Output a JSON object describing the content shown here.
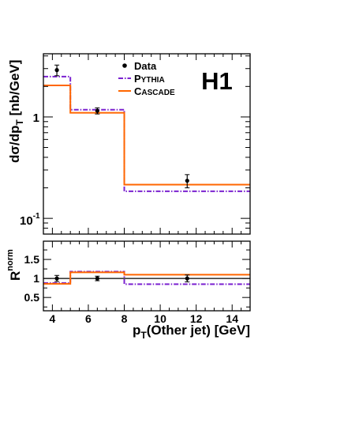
{
  "chart_data": [
    {
      "type": "line",
      "logo": "H1",
      "ylabel": {
        "main": "dσ/dp",
        "sub": "T",
        "unit": " [nb/GeV]"
      },
      "yscale": "log",
      "ylim": [
        0.07,
        4.2
      ],
      "xlim": [
        3.5,
        15
      ],
      "yticks": [
        {
          "value": 1,
          "label": "1"
        },
        {
          "value": 0.1,
          "base": "10",
          "exp": "-1"
        }
      ],
      "legend": {
        "position": "top-center",
        "entries": [
          {
            "key": "data",
            "label": "Data"
          },
          {
            "key": "pythia",
            "label": "PYTHIA"
          },
          {
            "key": "cascade",
            "label": "CASCADE"
          }
        ]
      },
      "bins": [
        3.5,
        5,
        8,
        15
      ],
      "data": {
        "x": [
          4.25,
          6.5,
          11.5
        ],
        "y": [
          2.9,
          1.15,
          0.235
        ],
        "yerr": [
          0.35,
          0.08,
          0.035
        ]
      },
      "pythia": {
        "values": [
          2.5,
          1.18,
          0.185
        ]
      },
      "cascade": {
        "values": [
          2.05,
          1.1,
          0.215
        ]
      }
    },
    {
      "type": "line",
      "ylabel": {
        "main": "R",
        "sup": "norm"
      },
      "ylim": [
        0.15,
        1.98
      ],
      "xlim": [
        3.5,
        15
      ],
      "yticks": [
        {
          "value": 0.5,
          "label": "0.5"
        },
        {
          "value": 1,
          "label": "1"
        },
        {
          "value": 1.5,
          "label": "1.5"
        }
      ],
      "xticks": [
        4,
        6,
        8,
        10,
        12,
        14
      ],
      "xlabel": {
        "main": "p",
        "sub": "T",
        "rest": "(Other jet)  [GeV]"
      },
      "bins": [
        3.5,
        5,
        8,
        15
      ],
      "data": {
        "x": [
          4.25,
          6.5,
          11.5
        ],
        "y": [
          1.0,
          1.0,
          1.0
        ],
        "yerr": [
          0.08,
          0.06,
          0.09
        ]
      },
      "pythia": {
        "values": [
          0.88,
          1.18,
          0.85
        ]
      },
      "cascade": {
        "values": [
          0.86,
          1.16,
          1.1
        ]
      },
      "reference": 1.0
    }
  ],
  "colors": {
    "pythia": "#7b22d0",
    "cascade": "#ff6600",
    "data": "#000000",
    "axis": "#000000"
  }
}
